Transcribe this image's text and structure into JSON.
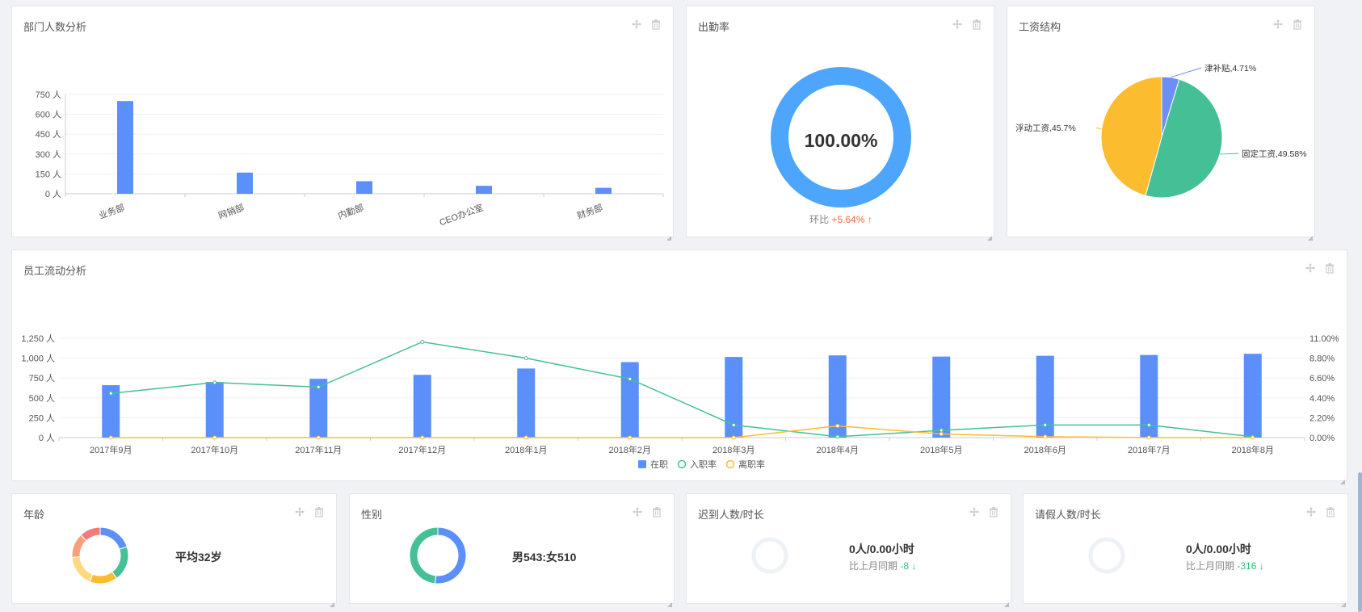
{
  "cards": {
    "dept": {
      "title": "部门人数分析"
    },
    "attendance": {
      "title": "出勤率",
      "value": "100.00%",
      "compare_label": "环比",
      "compare_value": "+5.64%",
      "arrow": "↑"
    },
    "salary": {
      "title": "工资结构"
    },
    "flow": {
      "title": "员工流动分析"
    },
    "age": {
      "title": "年龄",
      "summary": "平均32岁"
    },
    "gender": {
      "title": "性别",
      "summary": "男543:女510"
    },
    "late": {
      "title": "迟到人数/时长",
      "value": "0人/0.00小时",
      "compare_label": "比上月同期",
      "compare_value": "-8",
      "arrow": "↓"
    },
    "leave": {
      "title": "请假人数/时长",
      "value": "0人/0.00小时",
      "compare_label": "比上月同期",
      "compare_value": "-316",
      "arrow": "↓"
    }
  },
  "icons": {
    "move": "move-icon",
    "delete": "trash-icon",
    "resize": "resize-handle-icon"
  },
  "chart_data": [
    {
      "id": "dept",
      "type": "bar",
      "categories": [
        "业务部",
        "网销部",
        "内勤部",
        "CEO办公室",
        "财务部"
      ],
      "values": [
        700,
        160,
        95,
        60,
        45
      ],
      "ylim": [
        0,
        750
      ],
      "yticks": [
        "0 人",
        "150 人",
        "300 人",
        "450 人",
        "600 人",
        "750 人"
      ],
      "color": "#5b8ff9"
    },
    {
      "id": "attendance",
      "type": "pie",
      "values": [
        100
      ],
      "color": "#4da6fb"
    },
    {
      "id": "salary",
      "type": "pie",
      "slices": [
        {
          "label": "津补贴,4.71%",
          "value": 4.71,
          "color": "#6b8ff5"
        },
        {
          "label": "固定工资,49.58%",
          "value": 49.58,
          "color": "#45c096"
        },
        {
          "label": "浮动工资,45.7%",
          "value": 45.7,
          "color": "#fbbd2f"
        }
      ]
    },
    {
      "id": "flow",
      "type": "bar",
      "categories": [
        "2017年9月",
        "2017年10月",
        "2017年11月",
        "2017年12月",
        "2018年1月",
        "2018年2月",
        "2018年3月",
        "2018年4月",
        "2018年5月",
        "2018年6月",
        "2018年7月",
        "2018年8月"
      ],
      "series": [
        {
          "name": "在职",
          "type": "bar",
          "values": [
            660,
            700,
            740,
            790,
            870,
            950,
            1015,
            1035,
            1020,
            1030,
            1040,
            1055
          ],
          "color": "#5b8ff9"
        },
        {
          "name": "入职率",
          "type": "line",
          "values": [
            4.9,
            6.1,
            5.6,
            10.6,
            8.8,
            6.5,
            1.4,
            0.1,
            0.8,
            1.4,
            1.4,
            0.1
          ],
          "color": "#45c096"
        },
        {
          "name": "离职率",
          "type": "line",
          "values": [
            0,
            0,
            0,
            0,
            0,
            0,
            0,
            1.3,
            0.4,
            0.1,
            0,
            0
          ],
          "color": "#fbbd2f"
        }
      ],
      "ylim": [
        0,
        1250
      ],
      "yticks": [
        "0 人",
        "250 人",
        "500 人",
        "750 人",
        "1,000 人",
        "1,250 人"
      ],
      "y2lim": [
        0,
        11
      ],
      "y2ticks": [
        "0.00%",
        "2.20%",
        "4.40%",
        "6.60%",
        "8.80%",
        "11.00%"
      ],
      "legend": "bottom"
    },
    {
      "id": "age",
      "type": "pie",
      "values": [
        20,
        20,
        16,
        18,
        14,
        12
      ],
      "colors": [
        "#5b8ff9",
        "#45c096",
        "#fbbd2f",
        "#ffd980",
        "#f7a07b",
        "#f07b7b"
      ]
    },
    {
      "id": "gender",
      "type": "pie",
      "values": [
        543,
        510
      ],
      "colors": [
        "#5b8ff9",
        "#45c096"
      ]
    }
  ]
}
